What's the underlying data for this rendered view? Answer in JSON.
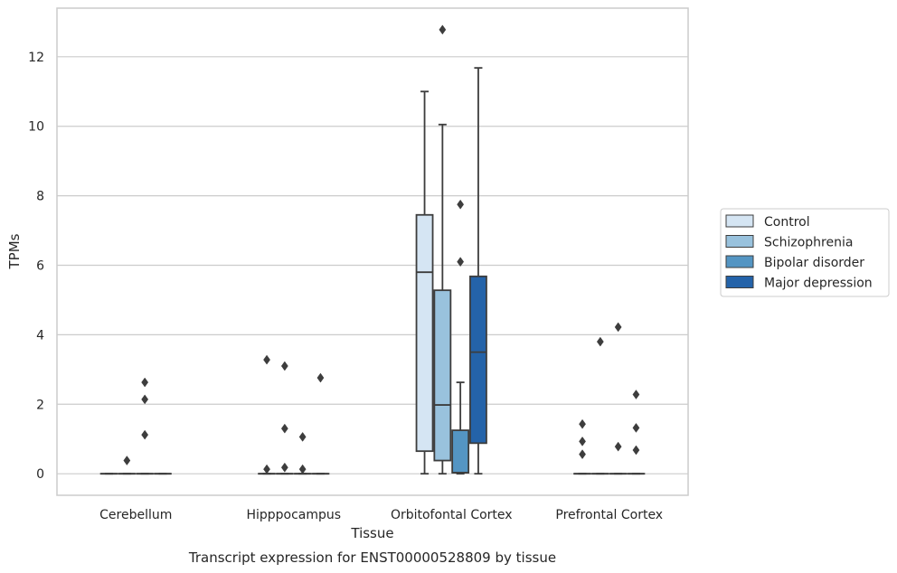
{
  "chart_data": {
    "type": "box",
    "title": "",
    "caption": "Transcript expression for ENST00000528809 by tissue",
    "xlabel": "Tissue",
    "ylabel": "TPMs",
    "ylim": [
      -0.62,
      13.4
    ],
    "yticks": [
      0,
      2,
      4,
      6,
      8,
      10,
      12
    ],
    "grid": "horizontal",
    "legend_position": "right",
    "categories": [
      "Cerebellum",
      "Hipppocampus",
      "Orbitofontal Cortex",
      "Prefrontal Cortex"
    ],
    "series": [
      {
        "name": "Control",
        "color": "#d5e5f3"
      },
      {
        "name": "Schizophrenia",
        "color": "#99c2dd"
      },
      {
        "name": "Bipolar disorder",
        "color": "#5495c3"
      },
      {
        "name": "Major depression",
        "color": "#2463a9"
      }
    ],
    "boxes": [
      {
        "category": 0,
        "series": 0,
        "q1": 0,
        "median": 0,
        "q3": 0,
        "whisker_low": 0,
        "whisker_high": 0,
        "outliers": []
      },
      {
        "category": 0,
        "series": 1,
        "q1": 0,
        "median": 0,
        "q3": 0,
        "whisker_low": 0,
        "whisker_high": 0,
        "outliers": [
          0.38
        ]
      },
      {
        "category": 0,
        "series": 2,
        "q1": 0,
        "median": 0,
        "q3": 0,
        "whisker_low": 0,
        "whisker_high": 0,
        "outliers": [
          2.63,
          2.14,
          1.12
        ]
      },
      {
        "category": 0,
        "series": 3,
        "q1": 0,
        "median": 0,
        "q3": 0,
        "whisker_low": 0,
        "whisker_high": 0,
        "outliers": []
      },
      {
        "category": 1,
        "series": 0,
        "q1": 0,
        "median": 0,
        "q3": 0,
        "whisker_low": 0,
        "whisker_high": 0,
        "outliers": [
          3.28,
          0.13
        ]
      },
      {
        "category": 1,
        "series": 1,
        "q1": 0,
        "median": 0,
        "q3": 0,
        "whisker_low": 0,
        "whisker_high": 0,
        "outliers": [
          3.1,
          1.3,
          0.18
        ]
      },
      {
        "category": 1,
        "series": 2,
        "q1": 0,
        "median": 0,
        "q3": 0,
        "whisker_low": 0,
        "whisker_high": 0,
        "outliers": [
          1.06,
          0.13
        ]
      },
      {
        "category": 1,
        "series": 3,
        "q1": 0,
        "median": 0,
        "q3": 0,
        "whisker_low": 0,
        "whisker_high": 0,
        "outliers": [
          2.76
        ]
      },
      {
        "category": 2,
        "series": 0,
        "q1": 0.65,
        "median": 5.8,
        "q3": 7.45,
        "whisker_low": 0,
        "whisker_high": 11.0,
        "outliers": []
      },
      {
        "category": 2,
        "series": 1,
        "q1": 0.38,
        "median": 1.98,
        "q3": 5.28,
        "whisker_low": 0,
        "whisker_high": 10.05,
        "outliers": [
          12.78
        ]
      },
      {
        "category": 2,
        "series": 2,
        "q1": 0.03,
        "median": 0.03,
        "q3": 1.25,
        "whisker_low": 0,
        "whisker_high": 2.63,
        "outliers": [
          7.75,
          6.1
        ]
      },
      {
        "category": 2,
        "series": 3,
        "q1": 0.88,
        "median": 3.5,
        "q3": 5.68,
        "whisker_low": 0,
        "whisker_high": 11.68,
        "outliers": []
      },
      {
        "category": 3,
        "series": 0,
        "q1": 0,
        "median": 0,
        "q3": 0,
        "whisker_low": 0,
        "whisker_high": 0,
        "outliers": [
          1.43,
          0.93,
          0.56
        ]
      },
      {
        "category": 3,
        "series": 1,
        "q1": 0,
        "median": 0,
        "q3": 0,
        "whisker_low": 0,
        "whisker_high": 0,
        "outliers": [
          3.8
        ]
      },
      {
        "category": 3,
        "series": 2,
        "q1": 0,
        "median": 0,
        "q3": 0,
        "whisker_low": 0,
        "whisker_high": 0,
        "outliers": [
          4.22,
          0.78
        ]
      },
      {
        "category": 3,
        "series": 3,
        "q1": 0,
        "median": 0,
        "q3": 0,
        "whisker_low": 0,
        "whisker_high": 0,
        "outliers": [
          2.28,
          1.32,
          0.68
        ]
      }
    ]
  }
}
